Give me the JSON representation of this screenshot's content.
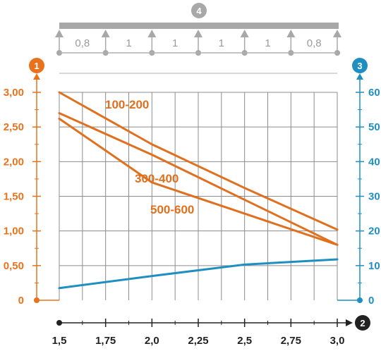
{
  "chart_data": {
    "type": "line",
    "x": [
      1.5,
      1.75,
      2.0,
      2.25,
      2.5,
      2.75,
      3.0
    ],
    "x_tick_labels": [
      "1,5",
      "1,75",
      "2,0",
      "2,25",
      "2,5",
      "2,75",
      "3,0"
    ],
    "xlim": [
      1.5,
      3.0
    ],
    "y_left": {
      "ticks": [
        0,
        0.5,
        1.0,
        1.5,
        2.0,
        2.5,
        3.0
      ],
      "tick_labels": [
        "0",
        "0,50",
        "1,00",
        "1,50",
        "2,00",
        "2,50",
        "3,00"
      ],
      "ylim": [
        0,
        3.0
      ]
    },
    "y_right": {
      "ticks": [
        0,
        10,
        20,
        30,
        40,
        50,
        60
      ],
      "tick_labels": [
        "0",
        "10",
        "20",
        "30",
        "40",
        "50",
        "60"
      ],
      "ylim": [
        0,
        60
      ]
    },
    "series": [
      {
        "name": "100-200",
        "axis": "left",
        "color": "#e0701e",
        "x": [
          1.5,
          2.0,
          2.5,
          3.0
        ],
        "values": [
          3.0,
          2.25,
          1.62,
          1.02
        ]
      },
      {
        "name": "300-400",
        "axis": "left",
        "color": "#e0701e",
        "x": [
          1.5,
          2.0,
          2.5,
          3.0
        ],
        "values": [
          2.7,
          2.1,
          1.45,
          0.8
        ]
      },
      {
        "name": "500-600",
        "axis": "left",
        "color": "#e0701e",
        "x": [
          1.5,
          2.0,
          2.5,
          3.0
        ],
        "values": [
          2.62,
          1.7,
          1.25,
          0.8
        ]
      },
      {
        "name": "",
        "axis": "right",
        "color": "#1f8fc1",
        "x": [
          1.5,
          2.0,
          2.5,
          3.0
        ],
        "values": [
          3.5,
          7,
          10.3,
          11.8
        ]
      }
    ],
    "badges": {
      "left": "1",
      "bottom": "2",
      "right": "3",
      "top": "4"
    },
    "top_spans": [
      "0,8",
      "1",
      "1",
      "1",
      "1",
      "0,8"
    ],
    "colors": {
      "left_axis": "#e8731c",
      "right_axis": "#1f8fc1",
      "grid": "#8c8c8c",
      "beam": "#a8a8a8",
      "bottom_axis": "#222222"
    },
    "grid": true
  }
}
